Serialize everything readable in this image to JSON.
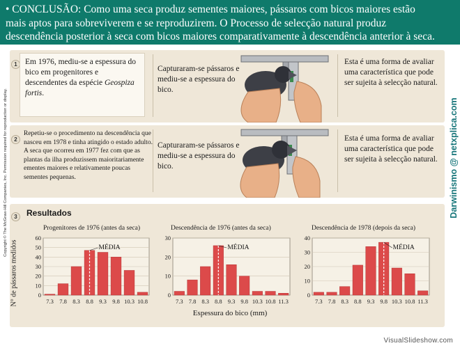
{
  "banner": {
    "line1": "• CONCLUSÃO: Como uma seca produz sementes maiores, pássaros com bicos maiores estão",
    "line2": "mais aptos para sobreviverem e se reproduzirem. O Processo de selecção natural produz",
    "line3": "descendência posterior à seca com bicos maiores comparativamente à descendência anterior à seca."
  },
  "copyright": "Copyright © The McGraw-Hill Companies, Inc. Permission required for reproduction or display.",
  "watermark": "Darwinismo @ netxplica.com",
  "step1": {
    "number": "1",
    "text_a": "Em 1976, mediu-se a espessura do bico em progenitores e descendentes da espécie ",
    "species": "Geospiza fortis",
    "text_b": ".",
    "capture": "Capturaram-se pássaros e mediu-se a espessura do bico.",
    "note": "Esta é uma forma de avaliar uma característica que pode ser sujeita à selecção natural."
  },
  "step2": {
    "number": "2",
    "text": "Repetiu-se o procedimento na descendência que nasceu em 1978 e tinha atingido o estado adulto. A seca que ocorreu em 1977 fez com que as plantas da ilha produzissem maioritariamente ementes maiores e relativamente poucas sementes pequenas.",
    "capture": "Capturaram-se pássaros e mediu-se a espessura do bico.",
    "note": "Esta é uma forma de avaliar uma característica que pode ser sujeita à selecção natural."
  },
  "results": {
    "number": "3",
    "title": "Resultados",
    "ylabel": "N° de pássaros medidos",
    "xlabel": "Espessura do bico (mm)"
  },
  "footer": "VisualSlideshow.com",
  "colors": {
    "banner": "#0f7a6b",
    "panel": "#efe7d8",
    "bar": "#dc4a4a",
    "watermark": "#17767a"
  },
  "chart_data": [
    {
      "type": "bar",
      "title": "Progenitores de 1976 (antes da seca)",
      "categories": [
        "7.3",
        "7.8",
        "8.3",
        "8.8",
        "9.3",
        "9.8",
        "10.3",
        "10.8"
      ],
      "values": [
        1,
        12,
        30,
        47,
        45,
        40,
        26,
        3
      ],
      "ylim": [
        0,
        60
      ],
      "yticks": [
        0,
        10,
        20,
        30,
        40,
        50,
        60
      ],
      "mean_label": "MÉDIA",
      "mean": 8.8,
      "grid": true
    },
    {
      "type": "bar",
      "title": "Descendência de 1976 (antes da seca)",
      "categories": [
        "7.3",
        "7.8",
        "8.3",
        "8.8",
        "9.3",
        "9.8",
        "10.3",
        "10.8",
        "11.3"
      ],
      "values": [
        2,
        8,
        15,
        26,
        16,
        10,
        2,
        2,
        1
      ],
      "ylim": [
        0,
        30
      ],
      "yticks": [
        0,
        10,
        20,
        30
      ],
      "mean_label": "MÉDIA",
      "mean": 8.8,
      "grid": true
    },
    {
      "type": "bar",
      "title": "Descendência de 1978 (depois da seca)",
      "categories": [
        "7.3",
        "7.8",
        "8.3",
        "8.8",
        "9.3",
        "9.8",
        "10.3",
        "10.8",
        "11.3"
      ],
      "values": [
        2,
        2,
        6,
        21,
        34,
        37,
        19,
        15,
        3
      ],
      "ylim": [
        0,
        40
      ],
      "yticks": [
        0,
        10,
        20,
        30,
        40
      ],
      "mean_label": "MÉDIA",
      "mean": 9.8,
      "grid": true
    }
  ]
}
